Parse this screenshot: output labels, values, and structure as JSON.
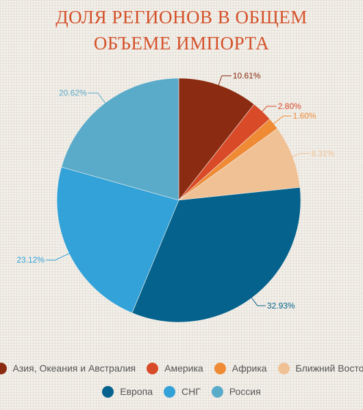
{
  "title_lines": [
    "ДОЛЯ РЕГИОНОВ В ОБЩЕМ",
    "ОБЪЕМЕ ИМПОРТА"
  ],
  "chart_data": {
    "type": "pie",
    "title": "ДОЛЯ РЕГИОНОВ В ОБЩЕМ ОБЪЕМЕ ИМПОРТА",
    "unit": "%",
    "legend_position": "bottom",
    "slices": [
      {
        "label": "Азия, Океания и Австралия",
        "value": 10.61,
        "display": "10.61%",
        "color": "#8b2c12"
      },
      {
        "label": "Америка",
        "value": 2.8,
        "display": "2.80%",
        "color": "#d94a28"
      },
      {
        "label": "Африка",
        "value": 1.6,
        "display": "1.60%",
        "color": "#ef8a35"
      },
      {
        "label": "Ближний Восток",
        "value": 8.31,
        "display": "8.31%",
        "color": "#f0c194"
      },
      {
        "label": "Европа",
        "value": 32.93,
        "display": "32.93%",
        "color": "#05628d"
      },
      {
        "label": "СНГ",
        "value": 23.12,
        "display": "23.12%",
        "color": "#32a2d9"
      },
      {
        "label": "Россия",
        "value": 20.62,
        "display": "20.62%",
        "color": "#5aabca"
      }
    ]
  }
}
